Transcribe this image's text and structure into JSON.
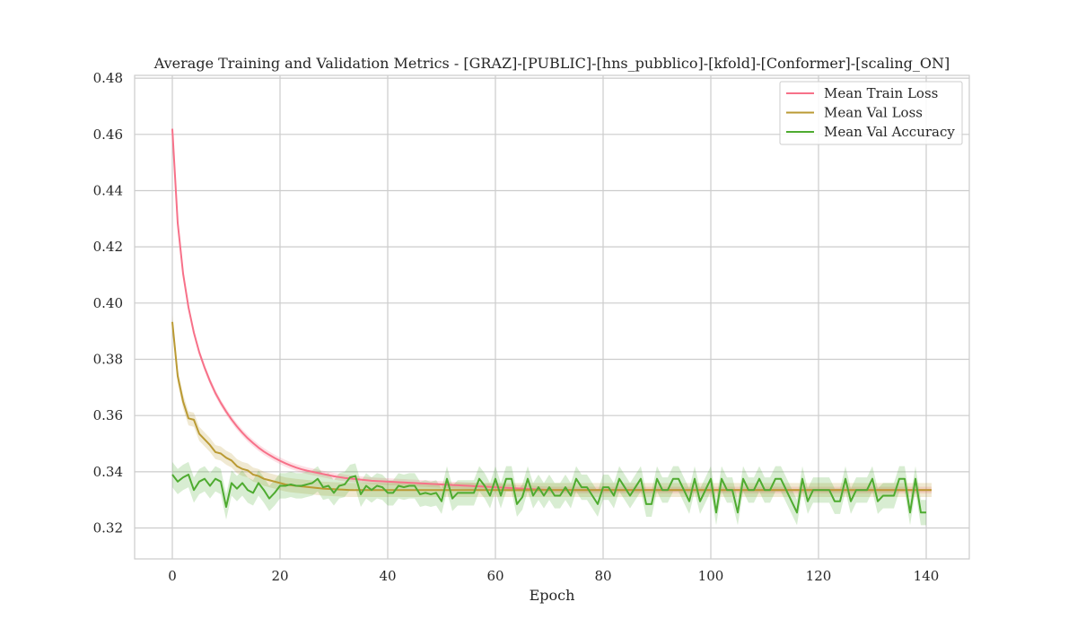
{
  "chart_data": {
    "type": "line",
    "title": "Average Training and Validation Metrics - [GRAZ]-[PUBLIC]-[hns_pubblico]-[kfold]-[Conformer]-[scaling_ON]",
    "xlabel": "Epoch",
    "ylabel": "",
    "xlim": [
      -7,
      148
    ],
    "ylim": [
      0.309,
      0.481
    ],
    "xticks": [
      0,
      20,
      40,
      60,
      80,
      100,
      120,
      140
    ],
    "yticks": [
      0.32,
      0.34,
      0.36,
      0.38,
      0.4,
      0.42,
      0.44,
      0.46,
      0.48
    ],
    "xtick_labels": [
      "0",
      "20",
      "40",
      "60",
      "80",
      "100",
      "120",
      "140"
    ],
    "ytick_labels": [
      "0.32",
      "0.34",
      "0.36",
      "0.38",
      "0.40",
      "0.42",
      "0.44",
      "0.46",
      "0.48"
    ],
    "grid": true,
    "legend_position": "top-right",
    "series": [
      {
        "name": "Mean Train Loss",
        "color": "#f77189",
        "band_width": 0.0012,
        "values": [
          0.462,
          0.4285,
          0.4105,
          0.3985,
          0.3895,
          0.3825,
          0.377,
          0.3722,
          0.368,
          0.3645,
          0.3614,
          0.3586,
          0.3561,
          0.3539,
          0.3519,
          0.3502,
          0.3486,
          0.3472,
          0.346,
          0.3449,
          0.3439,
          0.343,
          0.3422,
          0.3415,
          0.3409,
          0.3404,
          0.34,
          0.3396,
          0.3392,
          0.3388,
          0.3384,
          0.3381,
          0.3378,
          0.3376,
          0.3374,
          0.3372,
          0.337,
          0.3368,
          0.3367,
          0.3366,
          0.3365,
          0.3364,
          0.3363,
          0.3362,
          0.3361,
          0.336,
          0.3359,
          0.3358,
          0.3357,
          0.3356,
          0.3355,
          0.3354,
          0.3353,
          0.3352,
          0.3351,
          0.335,
          0.3349,
          0.3348,
          0.3347,
          0.3346,
          0.3345,
          0.3344,
          0.3343,
          0.3342,
          0.3341,
          0.334,
          0.3339,
          0.3338,
          0.3337,
          0.3336,
          0.3335,
          0.3335,
          0.3335,
          0.3335,
          0.3335,
          0.3335,
          0.3335,
          0.3335,
          0.3335,
          0.3335,
          0.3335,
          0.3335,
          0.3335,
          0.3335,
          0.3335,
          0.3335,
          0.3335,
          0.3335,
          0.3335,
          0.3335,
          0.3335,
          0.3335,
          0.3335,
          0.3335,
          0.3335,
          0.3335,
          0.3335,
          0.3335,
          0.3335,
          0.3335,
          0.3335,
          0.3335,
          0.3335,
          0.3335,
          0.3335,
          0.3335,
          0.3335,
          0.3335,
          0.3335,
          0.3335,
          0.3335,
          0.3335,
          0.3335,
          0.3335,
          0.3335,
          0.3335,
          0.3335,
          0.3335,
          0.3335,
          0.3335,
          0.3335,
          0.3335,
          0.3335,
          0.3335,
          0.3335,
          0.3335,
          0.3335,
          0.3335,
          0.3335,
          0.3335,
          0.3335,
          0.3335,
          0.3335,
          0.3335,
          0.3335,
          0.3335,
          0.3335,
          0.3335,
          0.3335,
          0.3335,
          0.3335,
          0.3335
        ]
      },
      {
        "name": "Mean Val Loss",
        "color": "#ba9a33",
        "band_width": 0.0025,
        "values": [
          0.3933,
          0.374,
          0.365,
          0.359,
          0.3585,
          0.3535,
          0.3515,
          0.3495,
          0.347,
          0.3465,
          0.345,
          0.344,
          0.342,
          0.341,
          0.3405,
          0.339,
          0.3385,
          0.3375,
          0.337,
          0.3365,
          0.336,
          0.3355,
          0.3352,
          0.335,
          0.3348,
          0.3346,
          0.3344,
          0.3342,
          0.334,
          0.3339,
          0.3338,
          0.3337,
          0.3336,
          0.3335,
          0.3335,
          0.3335,
          0.3335,
          0.3335,
          0.3335,
          0.3335,
          0.3335,
          0.3335,
          0.3335,
          0.3335,
          0.3335,
          0.3335,
          0.3335,
          0.3335,
          0.3335,
          0.3335,
          0.3335,
          0.3335,
          0.3335,
          0.3335,
          0.3335,
          0.3335,
          0.3335,
          0.3335,
          0.3335,
          0.3335,
          0.3335,
          0.3335,
          0.3335,
          0.3335,
          0.3335,
          0.3335,
          0.3335,
          0.3335,
          0.3335,
          0.3335,
          0.3335,
          0.3335,
          0.3335,
          0.3335,
          0.3335,
          0.3335,
          0.3335,
          0.3335,
          0.3335,
          0.3335,
          0.3335,
          0.3335,
          0.3335,
          0.3335,
          0.3335,
          0.3335,
          0.3335,
          0.3335,
          0.3335,
          0.3335,
          0.3335,
          0.3335,
          0.3335,
          0.3335,
          0.3335,
          0.3335,
          0.3335,
          0.3335,
          0.3335,
          0.3335,
          0.3335,
          0.3335,
          0.3335,
          0.3335,
          0.3335,
          0.3335,
          0.3335,
          0.3335,
          0.3335,
          0.3335,
          0.3335,
          0.3335,
          0.3335,
          0.3335,
          0.3335,
          0.3335,
          0.3335,
          0.3335,
          0.3335,
          0.3335,
          0.3335,
          0.3335,
          0.3335,
          0.3335,
          0.3335,
          0.3335,
          0.3335,
          0.3335,
          0.3335,
          0.3335,
          0.3335,
          0.3335,
          0.3335,
          0.3335,
          0.3335,
          0.3335,
          0.3335,
          0.3335,
          0.3335,
          0.3335,
          0.3335,
          0.3335
        ]
      },
      {
        "name": "Mean Val Accuracy",
        "color": "#4eab30",
        "band_width": 0.0045,
        "values": [
          0.339,
          0.3365,
          0.338,
          0.339,
          0.3335,
          0.3365,
          0.3375,
          0.335,
          0.3375,
          0.3365,
          0.3275,
          0.336,
          0.334,
          0.336,
          0.3335,
          0.3325,
          0.336,
          0.3335,
          0.3305,
          0.3325,
          0.335,
          0.335,
          0.3355,
          0.335,
          0.335,
          0.3355,
          0.336,
          0.3375,
          0.3345,
          0.335,
          0.3325,
          0.335,
          0.3355,
          0.338,
          0.3385,
          0.332,
          0.335,
          0.3335,
          0.335,
          0.3345,
          0.3325,
          0.3325,
          0.335,
          0.3345,
          0.335,
          0.335,
          0.332,
          0.3325,
          0.332,
          0.3325,
          0.3295,
          0.3375,
          0.3305,
          0.3325,
          0.3325,
          0.3325,
          0.3325,
          0.3375,
          0.335,
          0.3315,
          0.3375,
          0.3315,
          0.3375,
          0.3375,
          0.3285,
          0.331,
          0.3375,
          0.3315,
          0.3345,
          0.3315,
          0.3345,
          0.3315,
          0.3315,
          0.3345,
          0.3315,
          0.3375,
          0.3345,
          0.3345,
          0.3315,
          0.3285,
          0.3345,
          0.3345,
          0.3315,
          0.3375,
          0.3345,
          0.3315,
          0.3345,
          0.3375,
          0.3285,
          0.3285,
          0.3375,
          0.3335,
          0.3335,
          0.3375,
          0.3375,
          0.3335,
          0.3295,
          0.3375,
          0.3295,
          0.3335,
          0.3375,
          0.3255,
          0.3375,
          0.3335,
          0.3335,
          0.3255,
          0.3375,
          0.3335,
          0.3335,
          0.3375,
          0.3335,
          0.3335,
          0.3375,
          0.3375,
          0.3335,
          0.3295,
          0.3255,
          0.3375,
          0.3295,
          0.3335,
          0.3335,
          0.3335,
          0.3335,
          0.3295,
          0.3295,
          0.3375,
          0.3295,
          0.3335,
          0.3335,
          0.3335,
          0.3375,
          0.3295,
          0.3315,
          0.3315,
          0.3315,
          0.3375,
          0.3375,
          0.3255,
          0.3375,
          0.3255,
          0.3255
        ]
      }
    ]
  }
}
